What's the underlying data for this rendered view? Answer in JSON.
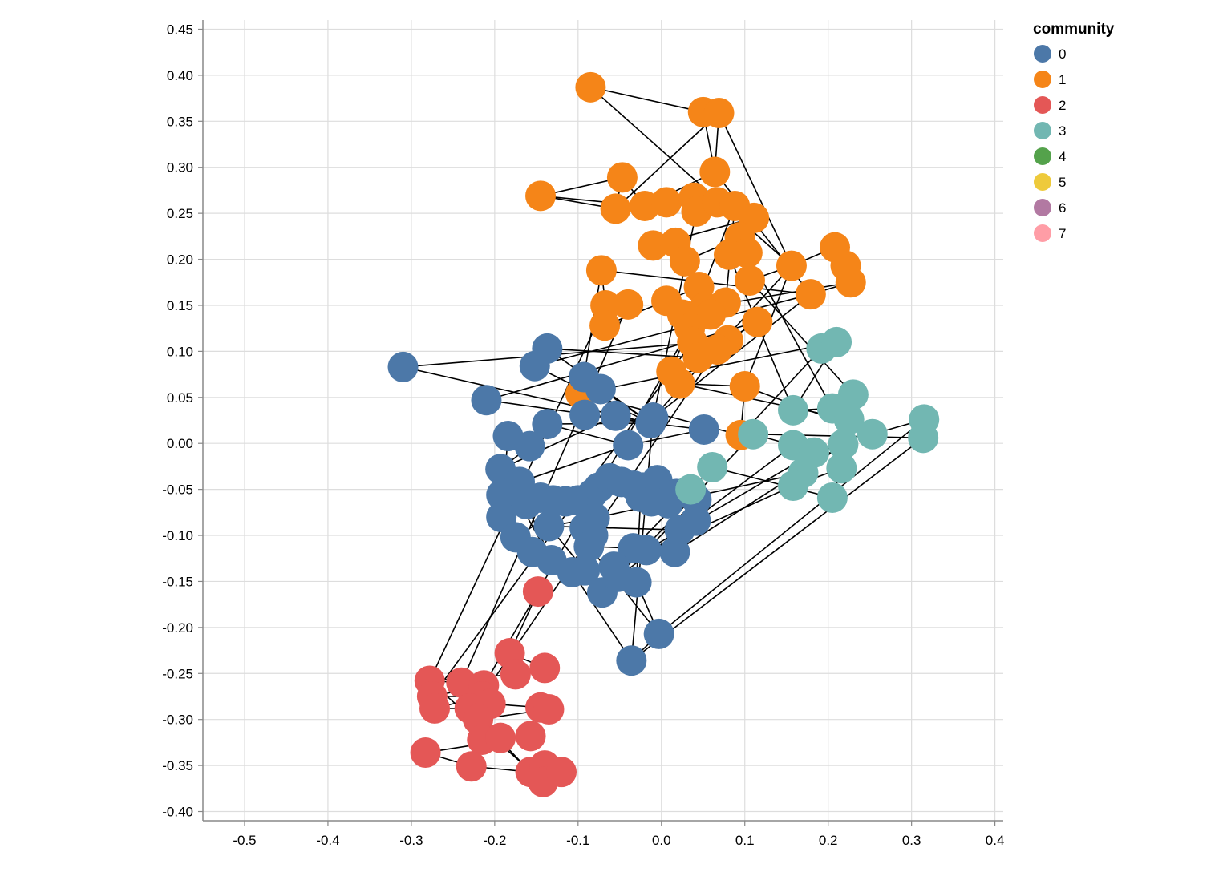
{
  "chart_data": {
    "type": "scatter",
    "subtype": "network-graph",
    "title": "",
    "xlabel": "",
    "ylabel": "",
    "xlim": [
      -0.55,
      0.41
    ],
    "ylim": [
      -0.41,
      0.46
    ],
    "x_ticks": [
      -0.5,
      -0.4,
      -0.3,
      -0.2,
      -0.1,
      0.0,
      0.1,
      0.2,
      0.3,
      0.4
    ],
    "x_tick_labels": [
      "-0.5",
      "-0.4",
      "-0.3",
      "-0.2",
      "-0.1",
      "0.0",
      "0.1",
      "0.2",
      "0.3",
      "0.4"
    ],
    "y_ticks": [
      0.45,
      0.4,
      0.35,
      0.3,
      0.25,
      0.2,
      0.15,
      0.1,
      0.05,
      0.0,
      -0.05,
      -0.1,
      -0.15,
      -0.2,
      -0.25,
      -0.3,
      -0.35,
      -0.4
    ],
    "y_tick_labels": [
      "0.45",
      "0.40",
      "0.35",
      "0.30",
      "0.25",
      "0.20",
      "0.15",
      "0.10",
      "0.05",
      "0.00",
      "-0.05",
      "-0.10",
      "-0.15",
      "-0.20",
      "-0.25",
      "-0.30",
      "-0.35",
      "-0.40"
    ],
    "grid": true,
    "legend": {
      "title": "community",
      "position": "top-right",
      "entries": [
        {
          "label": "0",
          "color": "#4c78a8"
        },
        {
          "label": "1",
          "color": "#f58518"
        },
        {
          "label": "2",
          "color": "#e45756"
        },
        {
          "label": "3",
          "color": "#72b7b2"
        },
        {
          "label": "4",
          "color": "#54a24b"
        },
        {
          "label": "5",
          "color": "#eeca3b"
        },
        {
          "label": "6",
          "color": "#b279a2"
        },
        {
          "label": "7",
          "color": "#ff9da6"
        }
      ]
    },
    "edges": [
      [
        "a1",
        "a0"
      ],
      [
        "a1",
        "a3"
      ],
      [
        "a1",
        "a2"
      ],
      [
        "a2",
        "a3"
      ],
      [
        "a2",
        "a6"
      ],
      [
        "a5",
        "a6"
      ],
      [
        "a6",
        "a4"
      ],
      [
        "a3",
        "a7"
      ],
      [
        "a4",
        "a7"
      ],
      [
        "a7",
        "a8"
      ],
      [
        "a8",
        "a9"
      ],
      [
        "a9",
        "a10"
      ],
      [
        "a10",
        "a11"
      ],
      [
        "a11",
        "a12"
      ],
      [
        "a12",
        "a13"
      ],
      [
        "a13",
        "a14"
      ],
      [
        "a14",
        "a15"
      ],
      [
        "a15",
        "a16"
      ],
      [
        "a16",
        "a17"
      ],
      [
        "a17",
        "a18"
      ],
      [
        "a18",
        "a19"
      ],
      [
        "a19",
        "a20"
      ],
      [
        "a20",
        "a21"
      ],
      [
        "a21",
        "a22"
      ],
      [
        "a22",
        "a23"
      ],
      [
        "a23",
        "a24"
      ],
      [
        "a24",
        "a25"
      ],
      [
        "a25",
        "a26"
      ],
      [
        "a26",
        "a27"
      ],
      [
        "a27",
        "a28"
      ],
      [
        "a28",
        "a29"
      ],
      [
        "a29",
        "a30"
      ],
      [
        "a30",
        "a31"
      ],
      [
        "a31",
        "a32"
      ],
      [
        "a32",
        "a33"
      ],
      [
        "a33",
        "a34"
      ],
      [
        "a34",
        "a35"
      ],
      [
        "a35",
        "a36"
      ],
      [
        "a36",
        "a37"
      ],
      [
        "a37",
        "a38"
      ],
      [
        "a38",
        "a39"
      ],
      [
        "a39",
        "a40"
      ],
      [
        "a40",
        "a42"
      ],
      [
        "a41",
        "a42"
      ],
      [
        "a42",
        "a43"
      ],
      [
        "a43",
        "a44"
      ],
      [
        "a44",
        "a45"
      ],
      [
        "a45",
        "a46"
      ],
      [
        "a46",
        "a47"
      ],
      [
        "a47",
        "a48"
      ],
      [
        "a48",
        "a49"
      ],
      [
        "a49",
        "a50"
      ],
      [
        "a50",
        "a51"
      ],
      [
        "a51",
        "a52"
      ],
      [
        "a52",
        "a53"
      ],
      [
        "a53",
        "a54"
      ],
      [
        "a54",
        "a55"
      ],
      [
        "a55",
        "a56"
      ],
      [
        "a56",
        "a57"
      ],
      [
        "a57",
        "a58"
      ],
      [
        "a58",
        "a59"
      ],
      [
        "a59",
        "a60"
      ],
      [
        "a60",
        "a61"
      ],
      [
        "a61",
        "a62"
      ],
      [
        "a62",
        "a63"
      ],
      [
        "a63",
        "a64"
      ],
      [
        "a21",
        "a2"
      ],
      [
        "a25",
        "a3"
      ],
      [
        "a33",
        "a12"
      ],
      [
        "a61",
        "a6"
      ],
      [
        "a64",
        "a8"
      ],
      [
        "a60",
        "a9"
      ],
      [
        "a44",
        "a21"
      ],
      [
        "a0",
        "a21"
      ],
      [
        "a7",
        "a5"
      ],
      [
        "a5",
        "a4"
      ],
      [
        "a12",
        "a42"
      ],
      [
        "a62",
        "a53"
      ],
      [
        "a58",
        "a47"
      ],
      [
        "a24",
        "a32"
      ],
      [
        "a10",
        "b57"
      ],
      [
        "a21",
        "b57"
      ],
      [
        "a25",
        "b57"
      ],
      [
        "a52",
        "c0"
      ],
      [
        "a53",
        "c1"
      ],
      [
        "a59",
        "c2"
      ],
      [
        "a60",
        "c3"
      ],
      [
        "a27",
        "c4"
      ],
      [
        "a28",
        "c5"
      ],
      [
        "a36",
        "c6"
      ],
      [
        "a37",
        "c7"
      ],
      [
        "a41",
        "c8"
      ],
      [
        "a62",
        "c9"
      ],
      [
        "a38",
        "b0"
      ],
      [
        "a39",
        "b1"
      ],
      [
        "a40",
        "b2"
      ],
      [
        "a25",
        "b3"
      ],
      [
        "a26",
        "b4"
      ],
      [
        "a45",
        "d0"
      ],
      [
        "a46",
        "d1"
      ],
      [
        "a18",
        "d2"
      ],
      [
        "a19",
        "d3"
      ],
      [
        "a20",
        "d4"
      ],
      [
        "a43",
        "d5"
      ],
      [
        "a44",
        "d6"
      ],
      [
        "b0",
        "b12"
      ],
      [
        "b1",
        "b12"
      ],
      [
        "b2",
        "b12"
      ],
      [
        "b3",
        "b12"
      ],
      [
        "b4",
        "b12"
      ],
      [
        "b5",
        "b12"
      ],
      [
        "b6",
        "b12"
      ],
      [
        "b7",
        "b12"
      ],
      [
        "b8",
        "b9"
      ],
      [
        "b9",
        "b10"
      ],
      [
        "b10",
        "b11"
      ],
      [
        "b11",
        "b12"
      ],
      [
        "b12",
        "b13"
      ],
      [
        "b13",
        "b14"
      ],
      [
        "b14",
        "b15"
      ],
      [
        "b15",
        "b16"
      ],
      [
        "b16",
        "b17"
      ],
      [
        "b17",
        "b18"
      ],
      [
        "b18",
        "b19"
      ],
      [
        "b19",
        "b20"
      ],
      [
        "b20",
        "b21"
      ],
      [
        "b21",
        "b22"
      ],
      [
        "b22",
        "b23"
      ],
      [
        "b23",
        "b24"
      ],
      [
        "b24",
        "b25"
      ],
      [
        "b25",
        "b26"
      ],
      [
        "b26",
        "b27"
      ],
      [
        "b27",
        "b28"
      ],
      [
        "b28",
        "b29"
      ],
      [
        "b29",
        "b30"
      ],
      [
        "b30",
        "b31"
      ],
      [
        "b31",
        "b32"
      ],
      [
        "b32",
        "b33"
      ],
      [
        "b33",
        "b34"
      ],
      [
        "b34",
        "b35"
      ],
      [
        "b35",
        "b36"
      ],
      [
        "b36",
        "b37"
      ],
      [
        "b37",
        "b38"
      ],
      [
        "b38",
        "b39"
      ],
      [
        "b39",
        "b40"
      ],
      [
        "b40",
        "b41"
      ],
      [
        "b41",
        "b42"
      ],
      [
        "b42",
        "b43"
      ],
      [
        "b43",
        "b44"
      ],
      [
        "b44",
        "b45"
      ],
      [
        "b45",
        "b46"
      ],
      [
        "b46",
        "b47"
      ],
      [
        "b47",
        "b48"
      ],
      [
        "b48",
        "b49"
      ],
      [
        "b49",
        "b50"
      ],
      [
        "b50",
        "b51"
      ],
      [
        "b51",
        "b52"
      ],
      [
        "b52",
        "b53"
      ],
      [
        "b53",
        "b54"
      ],
      [
        "b54",
        "b55"
      ],
      [
        "b55",
        "b56"
      ],
      [
        "b56",
        "b57"
      ],
      [
        "b57",
        "b58"
      ],
      [
        "b58",
        "b59"
      ],
      [
        "b59",
        "b60"
      ],
      [
        "b60",
        "b61"
      ],
      [
        "b61",
        "b62"
      ],
      [
        "b62",
        "b63"
      ],
      [
        "b63",
        "b64"
      ],
      [
        "b64",
        "b65"
      ],
      [
        "b65",
        "b66"
      ],
      [
        "b66",
        "b67"
      ],
      [
        "b17",
        "b8"
      ],
      [
        "b15",
        "b25"
      ],
      [
        "b18",
        "b28"
      ],
      [
        "b22",
        "b27"
      ],
      [
        "b30",
        "b36"
      ],
      [
        "b41",
        "b50"
      ],
      [
        "b45",
        "b55"
      ],
      [
        "b35",
        "b54"
      ],
      [
        "b60",
        "b53"
      ],
      [
        "b62",
        "b52"
      ],
      [
        "b49",
        "b56"
      ],
      [
        "b40",
        "b48"
      ],
      [
        "b38",
        "b47"
      ],
      [
        "b21",
        "b29"
      ],
      [
        "b10",
        "b20"
      ],
      [
        "b7",
        "b14"
      ],
      [
        "b55",
        "d7"
      ],
      [
        "b56",
        "d8"
      ],
      [
        "b52",
        "d9"
      ],
      [
        "b53",
        "d10"
      ],
      [
        "b47",
        "d11"
      ],
      [
        "b48",
        "d12"
      ],
      [
        "b42",
        "d13"
      ],
      [
        "b51",
        "d14"
      ],
      [
        "b61",
        "d15"
      ],
      [
        "b64",
        "d16"
      ],
      [
        "b46",
        "d17"
      ],
      [
        "b58",
        "d18"
      ],
      [
        "b65",
        "d19"
      ],
      [
        "b59",
        "d20"
      ],
      [
        "c0",
        "c1"
      ],
      [
        "c1",
        "c2"
      ],
      [
        "c2",
        "c3"
      ],
      [
        "c3",
        "c4"
      ],
      [
        "c4",
        "c5"
      ],
      [
        "c5",
        "c6"
      ],
      [
        "c6",
        "c7"
      ],
      [
        "c7",
        "c8"
      ],
      [
        "c8",
        "c9"
      ],
      [
        "c9",
        "c10"
      ],
      [
        "c10",
        "c11"
      ],
      [
        "c11",
        "c12"
      ],
      [
        "c12",
        "c13"
      ],
      [
        "c13",
        "c14"
      ],
      [
        "c14",
        "c15"
      ],
      [
        "c15",
        "c16"
      ],
      [
        "c16",
        "c17"
      ],
      [
        "c17",
        "c18"
      ],
      [
        "c18",
        "c19"
      ],
      [
        "c19",
        "c20"
      ],
      [
        "c20",
        "c21"
      ],
      [
        "c21",
        "c22"
      ],
      [
        "c22",
        "c23"
      ],
      [
        "c23",
        "c24"
      ],
      [
        "c24",
        "c25"
      ],
      [
        "c25",
        "c26"
      ],
      [
        "c26",
        "c27"
      ],
      [
        "c27",
        "c28"
      ],
      [
        "c28",
        "c29"
      ],
      [
        "c29",
        "c30"
      ],
      [
        "c30",
        "c31"
      ],
      [
        "c31",
        "c32"
      ],
      [
        "c32",
        "c33"
      ],
      [
        "c33",
        "c34"
      ],
      [
        "c34",
        "c35"
      ],
      [
        "c35",
        "c36"
      ],
      [
        "c36",
        "c37"
      ],
      [
        "c37",
        "c38"
      ],
      [
        "c38",
        "c39"
      ],
      [
        "c39",
        "c40"
      ],
      [
        "c40",
        "c41"
      ],
      [
        "c4",
        "c22"
      ],
      [
        "c8",
        "c30"
      ],
      [
        "c12",
        "c25"
      ],
      [
        "c18",
        "c35"
      ],
      [
        "c2",
        "c28"
      ],
      [
        "c14",
        "c40"
      ],
      [
        "c6",
        "c33"
      ],
      [
        "c10",
        "c20"
      ],
      [
        "c16",
        "c38"
      ],
      [
        "c24",
        "c41"
      ],
      [
        "d0",
        "d1"
      ],
      [
        "d1",
        "d2"
      ],
      [
        "d2",
        "d3"
      ],
      [
        "d3",
        "d4"
      ],
      [
        "d4",
        "d5"
      ],
      [
        "d5",
        "d6"
      ],
      [
        "d6",
        "d7"
      ],
      [
        "d7",
        "d8"
      ],
      [
        "d8",
        "d9"
      ],
      [
        "d9",
        "d10"
      ],
      [
        "d10",
        "d11"
      ],
      [
        "d11",
        "d12"
      ],
      [
        "d12",
        "d13"
      ],
      [
        "d13",
        "d14"
      ],
      [
        "d14",
        "d15"
      ],
      [
        "d15",
        "d16"
      ],
      [
        "d16",
        "d17"
      ],
      [
        "d17",
        "d18"
      ],
      [
        "d18",
        "d19"
      ],
      [
        "d19",
        "d20"
      ],
      [
        "d20",
        "d21"
      ],
      [
        "d21",
        "d22"
      ],
      [
        "d22",
        "d23"
      ],
      [
        "d23",
        "d24"
      ],
      [
        "d24",
        "d25"
      ],
      [
        "d25",
        "d26"
      ],
      [
        "d26",
        "d27"
      ],
      [
        "d27",
        "d28"
      ],
      [
        "d28",
        "d29"
      ],
      [
        "d29",
        "d30"
      ],
      [
        "d30",
        "d31"
      ],
      [
        "d31",
        "d32"
      ],
      [
        "d32",
        "d33"
      ],
      [
        "d33",
        "d34"
      ],
      [
        "d34",
        "d35"
      ],
      [
        "d35",
        "d36"
      ],
      [
        "d36",
        "d37"
      ],
      [
        "d37",
        "d38"
      ],
      [
        "d38",
        "d39"
      ],
      [
        "d39",
        "d40"
      ],
      [
        "d40",
        "d41"
      ],
      [
        "d41",
        "d42"
      ],
      [
        "d42",
        "d43"
      ],
      [
        "d43",
        "d44"
      ],
      [
        "d44",
        "d45"
      ],
      [
        "d45",
        "d46"
      ],
      [
        "d46",
        "d47"
      ],
      [
        "d47",
        "d48"
      ],
      [
        "d48",
        "d49"
      ],
      [
        "d49",
        "d50"
      ],
      [
        "d50",
        "d51"
      ],
      [
        "d51",
        "d52"
      ],
      [
        "d52",
        "d53"
      ],
      [
        "d53",
        "d54"
      ],
      [
        "d54",
        "d55"
      ],
      [
        "d55",
        "d56"
      ],
      [
        "d56",
        "d57"
      ],
      [
        "d57",
        "d58"
      ],
      [
        "d58",
        "d59"
      ],
      [
        "d59",
        "d60"
      ],
      [
        "d60",
        "d61"
      ],
      [
        "d61",
        "d62"
      ],
      [
        "d62",
        "d63"
      ],
      [
        "d63",
        "d64"
      ],
      [
        "d64",
        "d65"
      ],
      [
        "d65",
        "d66"
      ],
      [
        "d66",
        "d67"
      ],
      [
        "d67",
        "d68"
      ],
      [
        "d68",
        "d69"
      ],
      [
        "d69",
        "d70"
      ],
      [
        "d70",
        "d71"
      ],
      [
        "d71",
        "d72"
      ],
      [
        "d72",
        "d73"
      ],
      [
        "d73",
        "d74"
      ],
      [
        "d74",
        "d75"
      ],
      [
        "d75",
        "d76"
      ],
      [
        "d76",
        "d77"
      ],
      [
        "d77",
        "d78"
      ],
      [
        "d78",
        "d79"
      ],
      [
        "d79",
        "d80"
      ],
      [
        "d80",
        "d81"
      ],
      [
        "d81",
        "d82"
      ],
      [
        "d82",
        "d83"
      ],
      [
        "d83",
        "d84"
      ],
      [
        "d84",
        "d85"
      ],
      [
        "d85",
        "d86"
      ],
      [
        "d86",
        "d87"
      ],
      [
        "d87",
        "d88"
      ],
      [
        "d88",
        "d89"
      ],
      [
        "d89",
        "d90"
      ],
      [
        "d90",
        "d91"
      ],
      [
        "d91",
        "d92"
      ],
      [
        "d92",
        "d93"
      ],
      [
        "d93",
        "d94"
      ],
      [
        "d94",
        "d95"
      ],
      [
        "d95",
        "d96"
      ],
      [
        "d96",
        "d97"
      ],
      [
        "d97",
        "d98"
      ],
      [
        "d98",
        "d99"
      ],
      [
        "d99",
        "d100"
      ],
      [
        "d100",
        "d101"
      ],
      [
        "d101",
        "d102"
      ],
      [
        "d102",
        "d103"
      ],
      [
        "d103",
        "d104"
      ],
      [
        "d104",
        "d105"
      ],
      [
        "d105",
        "d106"
      ],
      [
        "d106",
        "d107"
      ],
      [
        "d107",
        "d108"
      ],
      [
        "d108",
        "d109"
      ],
      [
        "d109",
        "d110"
      ],
      [
        "d110",
        "d111"
      ],
      [
        "d111",
        "d112"
      ],
      [
        "d112",
        "d113"
      ],
      [
        "d113",
        "d114"
      ],
      [
        "d114",
        "d115"
      ],
      [
        "d115",
        "d116"
      ],
      [
        "d116",
        "d117"
      ],
      [
        "d117",
        "d118"
      ],
      [
        "d118",
        "d119"
      ]
    ],
    "nodes": []
  }
}
